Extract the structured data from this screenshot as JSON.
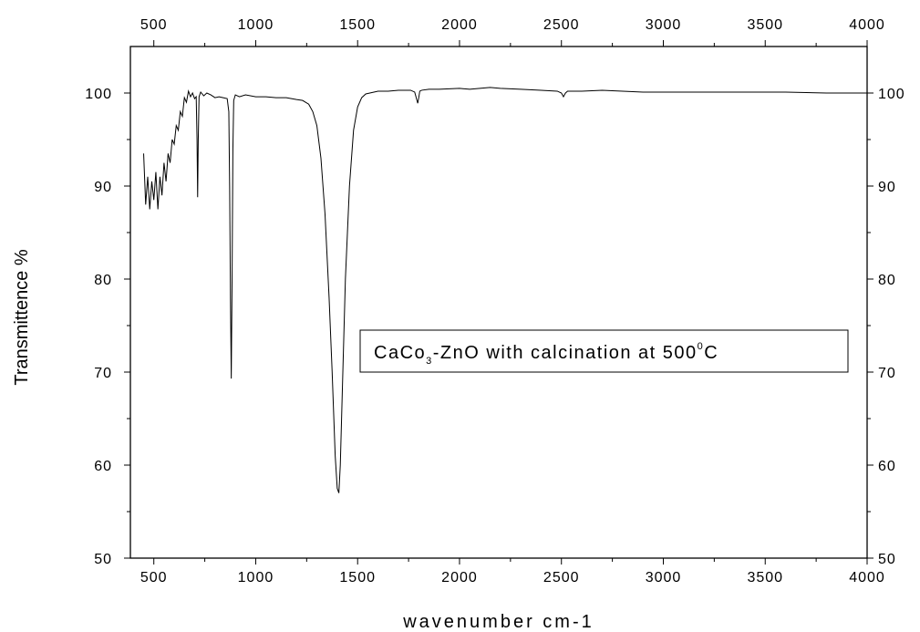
{
  "chart_data": {
    "type": "line",
    "xlabel": "wavenumber cm-1",
    "ylabel": "Transmittence %",
    "xlim": [
      385,
      4000
    ],
    "ylim": [
      50,
      105
    ],
    "x_ticks": [
      500,
      1000,
      1500,
      2000,
      2500,
      3000,
      3500,
      4000
    ],
    "y_ticks": [
      50,
      60,
      70,
      80,
      90,
      100
    ],
    "annotation": {
      "main": "CaCo",
      "sub": "3",
      "middle": "-ZnO with calcination at 500",
      "sup": "0",
      "end": "C"
    },
    "series": [
      {
        "color": "#000000",
        "x": [
          450,
          460,
          470,
          480,
          490,
          500,
          510,
          520,
          530,
          540,
          550,
          560,
          570,
          580,
          590,
          600,
          610,
          620,
          630,
          640,
          650,
          660,
          670,
          680,
          690,
          700,
          708,
          712,
          715,
          718,
          722,
          730,
          745,
          760,
          780,
          800,
          820,
          840,
          860,
          868,
          872,
          876,
          880,
          884,
          888,
          892,
          900,
          920,
          950,
          1000,
          1050,
          1100,
          1150,
          1200,
          1230,
          1260,
          1280,
          1300,
          1320,
          1340,
          1360,
          1375,
          1390,
          1400,
          1408,
          1415,
          1425,
          1440,
          1460,
          1480,
          1500,
          1520,
          1540,
          1560,
          1580,
          1600,
          1650,
          1700,
          1760,
          1780,
          1790,
          1795,
          1800,
          1805,
          1815,
          1850,
          1900,
          2000,
          2050,
          2100,
          2150,
          2200,
          2300,
          2400,
          2480,
          2500,
          2510,
          2515,
          2520,
          2530,
          2560,
          2600,
          2700,
          2800,
          2900,
          3000,
          3200,
          3400,
          3600,
          3800,
          4000
        ],
        "y": [
          93.5,
          88.0,
          91.0,
          87.5,
          90.5,
          88.5,
          91.5,
          87.5,
          91.0,
          89.0,
          92.5,
          90.5,
          93.5,
          92.5,
          95.0,
          94.5,
          96.5,
          96.0,
          98.0,
          97.5,
          99.5,
          99.0,
          100.2,
          99.6,
          100.0,
          99.4,
          99.6,
          95.0,
          88.8,
          95.0,
          99.6,
          100.1,
          99.7,
          100.0,
          99.8,
          99.5,
          99.6,
          99.5,
          99.4,
          98.0,
          90.0,
          78.0,
          69.3,
          80.0,
          94.0,
          99.2,
          99.8,
          99.6,
          99.8,
          99.6,
          99.6,
          99.5,
          99.5,
          99.3,
          99.2,
          98.8,
          98.0,
          96.5,
          93.0,
          87.0,
          78.0,
          70.0,
          61.0,
          57.5,
          57.0,
          60.0,
          68.0,
          80.0,
          90.0,
          96.0,
          98.5,
          99.5,
          99.9,
          100.0,
          100.1,
          100.2,
          100.2,
          100.3,
          100.3,
          100.1,
          99.3,
          98.9,
          99.5,
          100.2,
          100.3,
          100.4,
          100.4,
          100.5,
          100.4,
          100.5,
          100.6,
          100.5,
          100.4,
          100.3,
          100.2,
          100.0,
          99.6,
          99.8,
          100.0,
          100.2,
          100.2,
          100.2,
          100.3,
          100.2,
          100.1,
          100.1,
          100.1,
          100.1,
          100.1,
          100.0,
          100.0
        ]
      }
    ]
  }
}
